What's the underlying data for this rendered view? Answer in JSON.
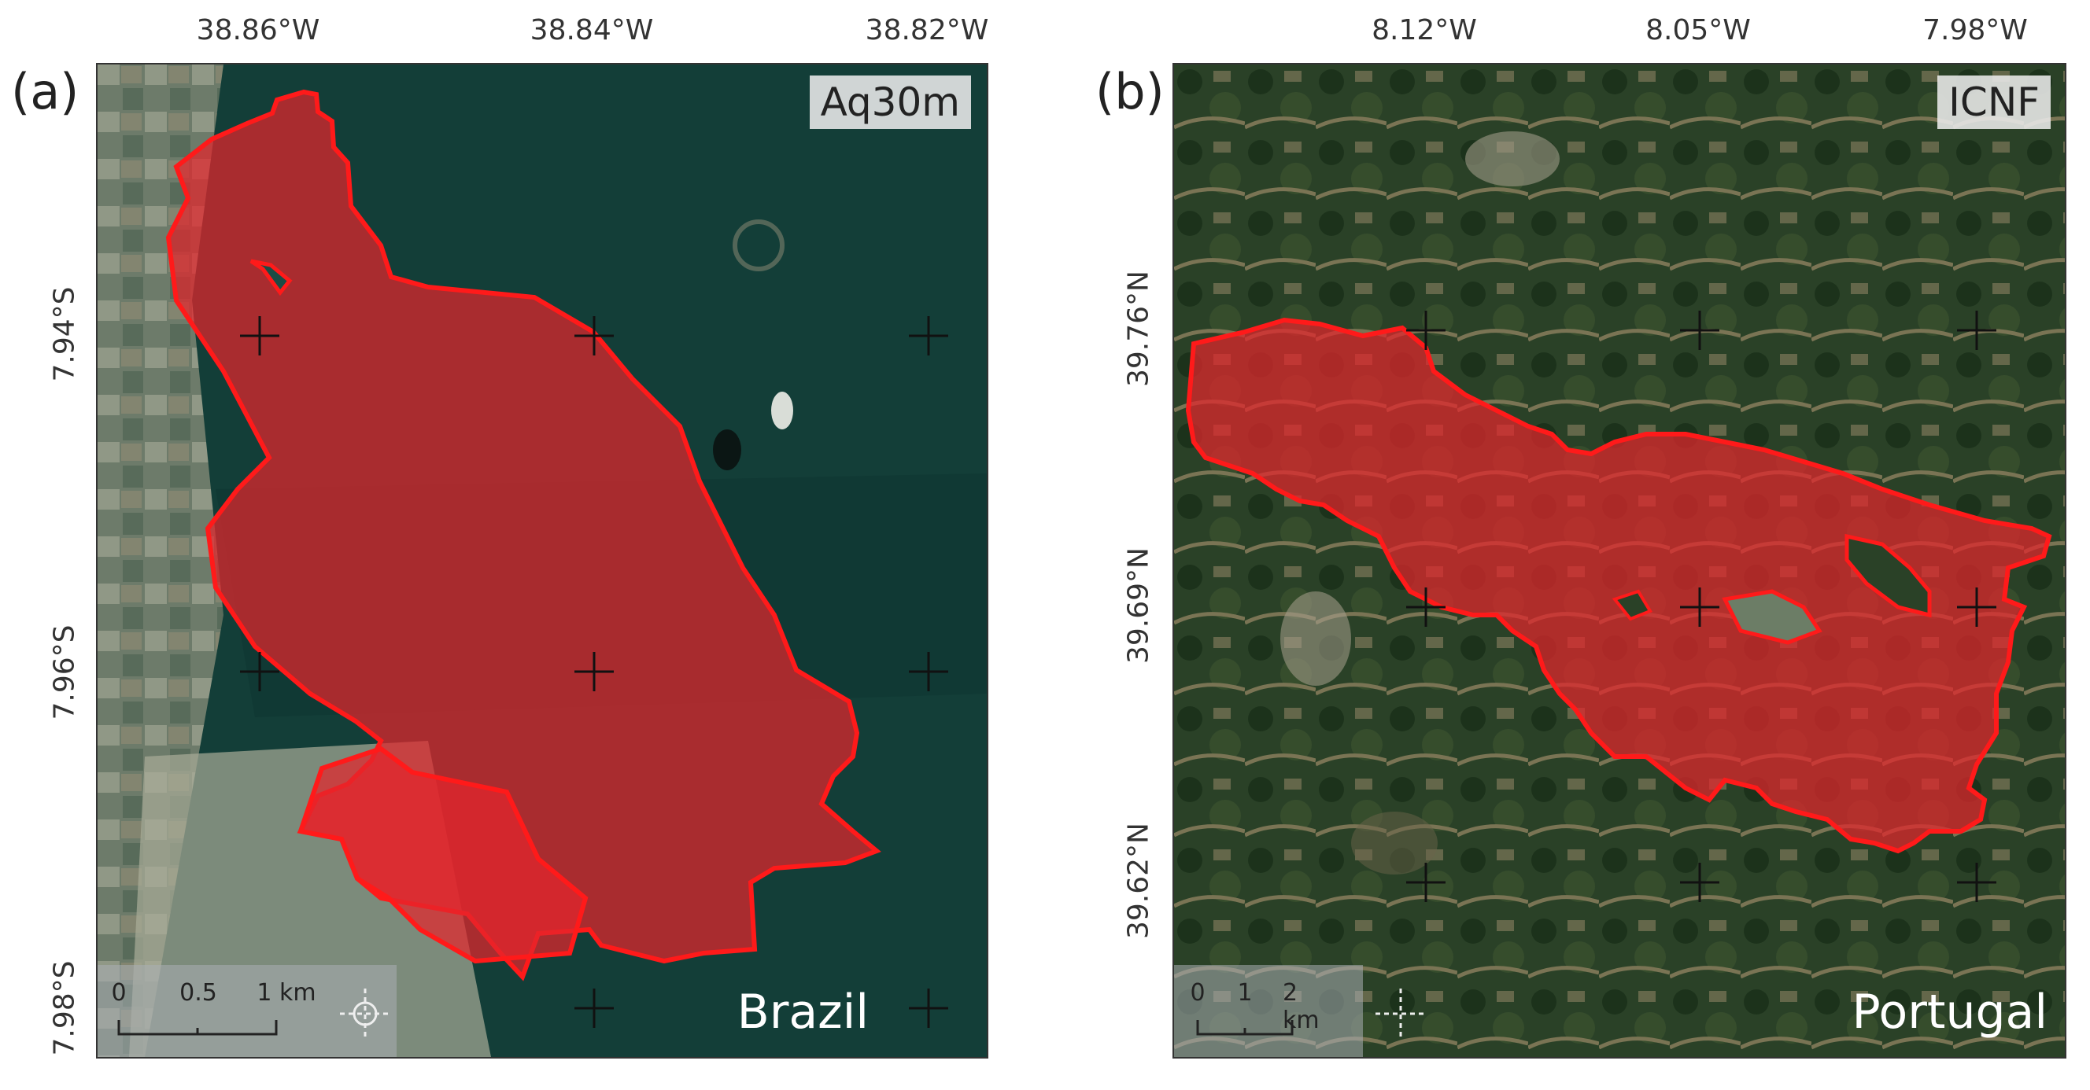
{
  "panels": [
    {
      "letter": "(a)",
      "tag": "Aq30m",
      "country": "Brazil",
      "colors": {
        "background": "#133e38",
        "fill": "#e3262d",
        "outline": "#ff1a1a"
      },
      "lon_ticks": [
        "38.86°W",
        "38.84°W",
        "38.82°W"
      ],
      "lat_ticks": [
        "7.94°S",
        "7.96°S",
        "7.98°S"
      ],
      "scale": {
        "labels": [
          "0",
          "0.5",
          "1 km"
        ]
      }
    },
    {
      "letter": "(b)",
      "tag": "ICNF",
      "country": "Portugal",
      "colors": {
        "background": "#253a24",
        "fill": "#e3262d",
        "outline": "#ff1a1a"
      },
      "lon_ticks": [
        "8.12°W",
        "8.05°W",
        "7.98°W"
      ],
      "lat_ticks": [
        "39.76°N",
        "39.69°N",
        "39.62°N"
      ],
      "scale": {
        "labels": [
          "0",
          "1",
          "2 km"
        ]
      }
    }
  ]
}
